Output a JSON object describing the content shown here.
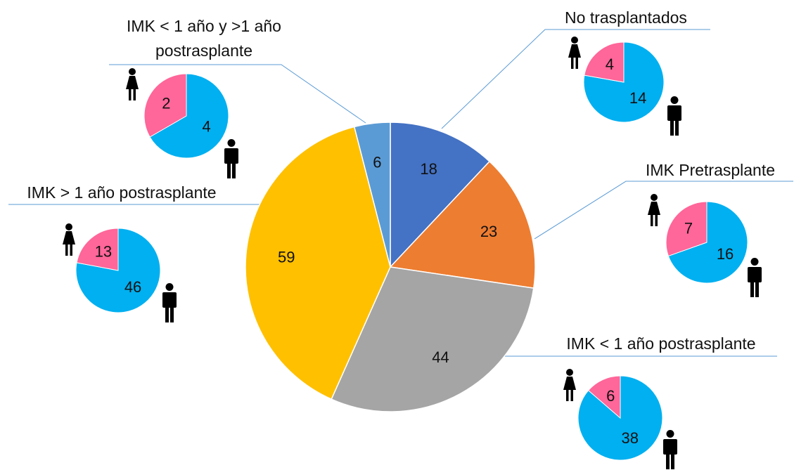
{
  "chart_data": [
    {
      "type": "pie",
      "categories": [
        "No trasplantados",
        "IMK Pretrasplante",
        "IMK < 1 año postrasplante",
        "IMK > 1 año postrasplante",
        "IMK < 1 año y >1 año postrasplante"
      ],
      "values": [
        18,
        23,
        44,
        59,
        6
      ],
      "colors": [
        "#4472c4",
        "#ed7d31",
        "#a5a5a5",
        "#ffc000",
        "#5b9bd5"
      ]
    },
    {
      "type": "pie",
      "values": [
        14,
        4
      ],
      "colors": [
        "#00b0f0",
        "#ff6699"
      ]
    },
    {
      "type": "pie",
      "values": [
        16,
        7
      ],
      "colors": [
        "#00b0f0",
        "#ff6699"
      ]
    },
    {
      "type": "pie",
      "values": [
        38,
        6
      ],
      "colors": [
        "#00b0f0",
        "#ff6699"
      ]
    },
    {
      "type": "pie",
      "values": [
        46,
        13
      ],
      "colors": [
        "#00b0f0",
        "#ff6699"
      ]
    },
    {
      "type": "pie",
      "values": [
        4,
        2
      ],
      "colors": [
        "#00b0f0",
        "#ff6699"
      ]
    }
  ]
}
